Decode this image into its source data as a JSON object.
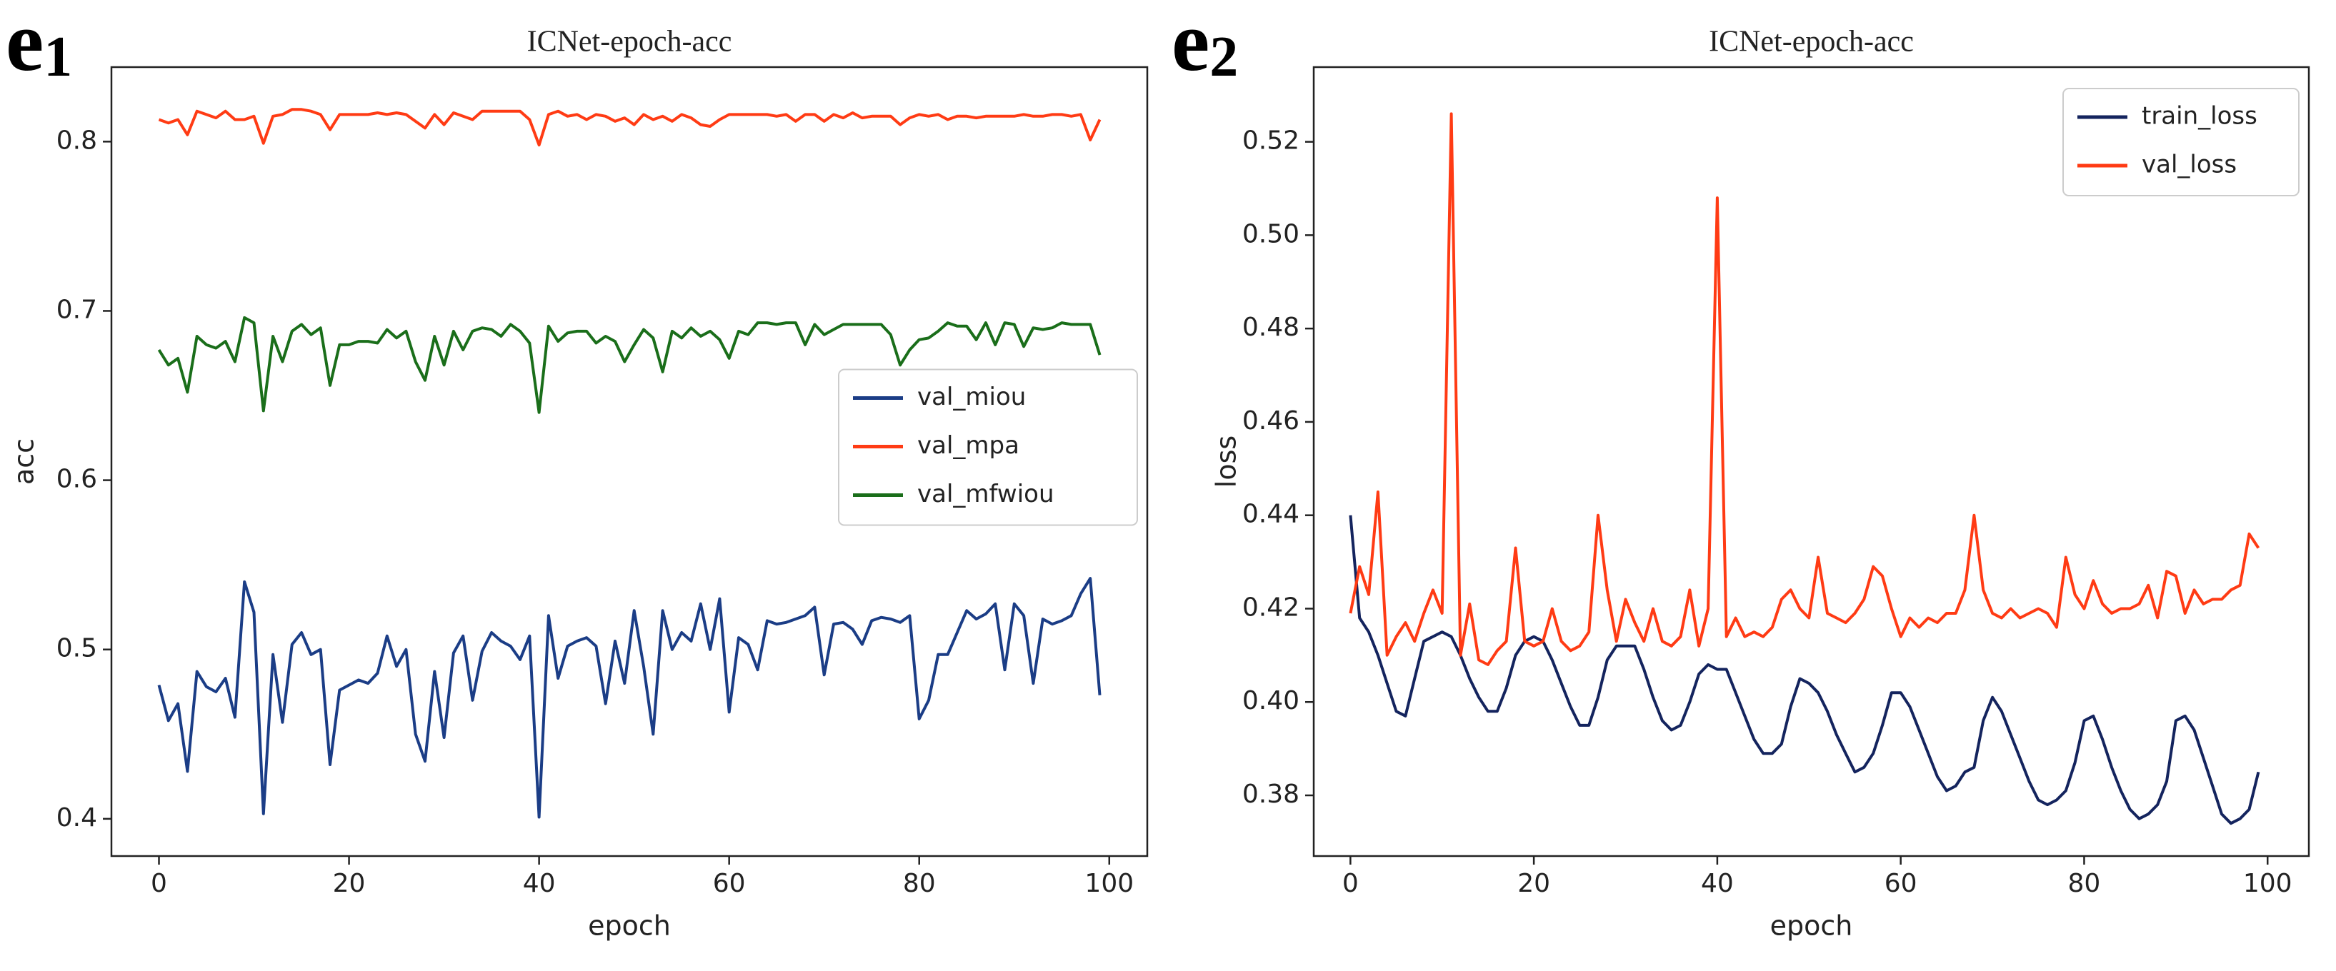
{
  "chart_data": [
    {
      "type": "line",
      "panel_label": "e",
      "panel_sub": "1",
      "title": "ICNet-epoch-acc",
      "x_label": "epoch",
      "y_label": "acc",
      "legend": "center right",
      "xlim": [
        -5,
        104
      ],
      "ylim": [
        0.378,
        0.844
      ],
      "xticks": [
        0,
        20,
        40,
        60,
        80,
        100
      ],
      "yticks": [
        0.4,
        0.5,
        0.6,
        0.7,
        0.8
      ],
      "x": [
        0,
        1,
        2,
        3,
        4,
        5,
        6,
        7,
        8,
        9,
        10,
        11,
        12,
        13,
        14,
        15,
        16,
        17,
        18,
        19,
        20,
        21,
        22,
        23,
        24,
        25,
        26,
        27,
        28,
        29,
        30,
        31,
        32,
        33,
        34,
        35,
        36,
        37,
        38,
        39,
        40,
        41,
        42,
        43,
        44,
        45,
        46,
        47,
        48,
        49,
        50,
        51,
        52,
        53,
        54,
        55,
        56,
        57,
        58,
        59,
        60,
        61,
        62,
        63,
        64,
        65,
        66,
        67,
        68,
        69,
        70,
        71,
        72,
        73,
        74,
        75,
        76,
        77,
        78,
        79,
        80,
        81,
        82,
        83,
        84,
        85,
        86,
        87,
        88,
        89,
        90,
        91,
        92,
        93,
        94,
        95,
        96,
        97,
        98,
        99
      ],
      "series": [
        {
          "name": "val_miou",
          "color": "#1b3d86",
          "values": [
            0.479,
            0.458,
            0.468,
            0.428,
            0.487,
            0.478,
            0.475,
            0.483,
            0.46,
            0.54,
            0.522,
            0.403,
            0.497,
            0.457,
            0.503,
            0.51,
            0.497,
            0.5,
            0.432,
            0.476,
            0.479,
            0.482,
            0.48,
            0.486,
            0.508,
            0.49,
            0.5,
            0.45,
            0.434,
            0.487,
            0.448,
            0.498,
            0.508,
            0.47,
            0.499,
            0.51,
            0.505,
            0.502,
            0.494,
            0.508,
            0.401,
            0.52,
            0.483,
            0.502,
            0.505,
            0.507,
            0.502,
            0.468,
            0.505,
            0.48,
            0.523,
            0.49,
            0.45,
            0.523,
            0.5,
            0.51,
            0.505,
            0.527,
            0.5,
            0.53,
            0.463,
            0.507,
            0.503,
            0.488,
            0.517,
            0.515,
            0.516,
            0.518,
            0.52,
            0.525,
            0.485,
            0.515,
            0.516,
            0.512,
            0.503,
            0.517,
            0.519,
            0.518,
            0.516,
            0.52,
            0.459,
            0.47,
            0.497,
            0.497,
            0.51,
            0.523,
            0.518,
            0.521,
            0.527,
            0.488,
            0.527,
            0.52,
            0.48,
            0.518,
            0.515,
            0.517,
            0.52,
            0.533,
            0.542,
            0.473
          ]
        },
        {
          "name": "val_mpa",
          "color": "#ff3b14",
          "values": [
            0.813,
            0.811,
            0.813,
            0.804,
            0.818,
            0.816,
            0.814,
            0.818,
            0.813,
            0.813,
            0.815,
            0.799,
            0.815,
            0.816,
            0.819,
            0.819,
            0.818,
            0.816,
            0.807,
            0.816,
            0.816,
            0.816,
            0.816,
            0.817,
            0.816,
            0.817,
            0.816,
            0.812,
            0.808,
            0.816,
            0.81,
            0.817,
            0.815,
            0.813,
            0.818,
            0.818,
            0.818,
            0.818,
            0.818,
            0.813,
            0.798,
            0.816,
            0.818,
            0.815,
            0.816,
            0.813,
            0.816,
            0.815,
            0.812,
            0.814,
            0.81,
            0.816,
            0.813,
            0.815,
            0.812,
            0.816,
            0.814,
            0.81,
            0.809,
            0.813,
            0.816,
            0.816,
            0.816,
            0.816,
            0.816,
            0.815,
            0.816,
            0.812,
            0.816,
            0.816,
            0.812,
            0.816,
            0.814,
            0.817,
            0.814,
            0.815,
            0.815,
            0.815,
            0.81,
            0.814,
            0.816,
            0.815,
            0.816,
            0.813,
            0.815,
            0.815,
            0.814,
            0.815,
            0.815,
            0.815,
            0.815,
            0.816,
            0.815,
            0.815,
            0.816,
            0.816,
            0.815,
            0.816,
            0.801,
            0.813
          ]
        },
        {
          "name": "val_mfwiou",
          "color": "#1a6e1a",
          "values": [
            0.677,
            0.668,
            0.672,
            0.652,
            0.685,
            0.68,
            0.678,
            0.682,
            0.67,
            0.696,
            0.693,
            0.641,
            0.685,
            0.67,
            0.688,
            0.692,
            0.686,
            0.69,
            0.656,
            0.68,
            0.68,
            0.682,
            0.682,
            0.681,
            0.689,
            0.684,
            0.688,
            0.67,
            0.659,
            0.685,
            0.668,
            0.688,
            0.677,
            0.688,
            0.69,
            0.689,
            0.685,
            0.692,
            0.688,
            0.681,
            0.64,
            0.691,
            0.682,
            0.687,
            0.688,
            0.688,
            0.681,
            0.685,
            0.682,
            0.67,
            0.68,
            0.689,
            0.684,
            0.664,
            0.688,
            0.684,
            0.69,
            0.685,
            0.688,
            0.683,
            0.672,
            0.688,
            0.686,
            0.693,
            0.693,
            0.692,
            0.693,
            0.693,
            0.68,
            0.692,
            0.686,
            0.689,
            0.692,
            0.692,
            0.692,
            0.692,
            0.692,
            0.686,
            0.668,
            0.677,
            0.683,
            0.684,
            0.688,
            0.693,
            0.691,
            0.691,
            0.683,
            0.693,
            0.68,
            0.693,
            0.692,
            0.679,
            0.69,
            0.689,
            0.69,
            0.693,
            0.692,
            0.692,
            0.692,
            0.674
          ]
        }
      ]
    },
    {
      "type": "line",
      "panel_label": "e",
      "panel_sub": "2",
      "title": "ICNet-epoch-acc",
      "x_label": "epoch",
      "y_label": "loss",
      "legend": "upper right",
      "xlim": [
        -4,
        104.5
      ],
      "ylim": [
        0.367,
        0.536
      ],
      "xticks": [
        0,
        20,
        40,
        60,
        80,
        100
      ],
      "yticks": [
        0.38,
        {
          "value": 0.4,
          "label": "0.40"
        },
        0.42,
        0.44,
        0.46,
        0.48,
        {
          "value": 0.5,
          "label": "0.50"
        },
        0.52
      ],
      "x": [
        0,
        1,
        2,
        3,
        4,
        5,
        6,
        7,
        8,
        9,
        10,
        11,
        12,
        13,
        14,
        15,
        16,
        17,
        18,
        19,
        20,
        21,
        22,
        23,
        24,
        25,
        26,
        27,
        28,
        29,
        30,
        31,
        32,
        33,
        34,
        35,
        36,
        37,
        38,
        39,
        40,
        41,
        42,
        43,
        44,
        45,
        46,
        47,
        48,
        49,
        50,
        51,
        52,
        53,
        54,
        55,
        56,
        57,
        58,
        59,
        60,
        61,
        62,
        63,
        64,
        65,
        66,
        67,
        68,
        69,
        70,
        71,
        72,
        73,
        74,
        75,
        76,
        77,
        78,
        79,
        80,
        81,
        82,
        83,
        84,
        85,
        86,
        87,
        88,
        89,
        90,
        91,
        92,
        93,
        94,
        95,
        96,
        97,
        98,
        99
      ],
      "series": [
        {
          "name": "train_loss",
          "color": "#14245e",
          "values": [
            0.44,
            0.418,
            0.415,
            0.41,
            0.404,
            0.398,
            0.397,
            0.405,
            0.413,
            0.414,
            0.415,
            0.414,
            0.41,
            0.405,
            0.401,
            0.398,
            0.398,
            0.403,
            0.41,
            0.413,
            0.414,
            0.413,
            0.409,
            0.404,
            0.399,
            0.395,
            0.395,
            0.401,
            0.409,
            0.412,
            0.412,
            0.412,
            0.407,
            0.401,
            0.396,
            0.394,
            0.395,
            0.4,
            0.406,
            0.408,
            0.407,
            0.407,
            0.402,
            0.397,
            0.392,
            0.389,
            0.389,
            0.391,
            0.399,
            0.405,
            0.404,
            0.402,
            0.398,
            0.393,
            0.389,
            0.385,
            0.386,
            0.389,
            0.395,
            0.402,
            0.402,
            0.399,
            0.394,
            0.389,
            0.384,
            0.381,
            0.382,
            0.385,
            0.386,
            0.396,
            0.401,
            0.398,
            0.393,
            0.388,
            0.383,
            0.379,
            0.378,
            0.379,
            0.381,
            0.387,
            0.396,
            0.397,
            0.392,
            0.386,
            0.381,
            0.377,
            0.375,
            0.376,
            0.378,
            0.383,
            0.396,
            0.397,
            0.394,
            0.388,
            0.382,
            0.376,
            0.374,
            0.375,
            0.377,
            0.385
          ]
        },
        {
          "name": "val_loss",
          "color": "#ff3b14",
          "values": [
            0.419,
            0.429,
            0.423,
            0.445,
            0.41,
            0.414,
            0.417,
            0.413,
            0.419,
            0.424,
            0.419,
            0.526,
            0.41,
            0.421,
            0.409,
            0.408,
            0.411,
            0.413,
            0.433,
            0.413,
            0.412,
            0.413,
            0.42,
            0.413,
            0.411,
            0.412,
            0.415,
            0.44,
            0.424,
            0.413,
            0.422,
            0.417,
            0.413,
            0.42,
            0.413,
            0.412,
            0.414,
            0.424,
            0.412,
            0.42,
            0.508,
            0.414,
            0.418,
            0.414,
            0.415,
            0.414,
            0.416,
            0.422,
            0.424,
            0.42,
            0.418,
            0.431,
            0.419,
            0.418,
            0.417,
            0.419,
            0.422,
            0.429,
            0.427,
            0.42,
            0.414,
            0.418,
            0.416,
            0.418,
            0.417,
            0.419,
            0.419,
            0.424,
            0.44,
            0.424,
            0.419,
            0.418,
            0.42,
            0.418,
            0.419,
            0.42,
            0.419,
            0.416,
            0.431,
            0.423,
            0.42,
            0.426,
            0.421,
            0.419,
            0.42,
            0.42,
            0.421,
            0.425,
            0.418,
            0.428,
            0.427,
            0.419,
            0.424,
            0.421,
            0.422,
            0.422,
            0.424,
            0.425,
            0.436,
            0.433
          ]
        }
      ]
    }
  ]
}
